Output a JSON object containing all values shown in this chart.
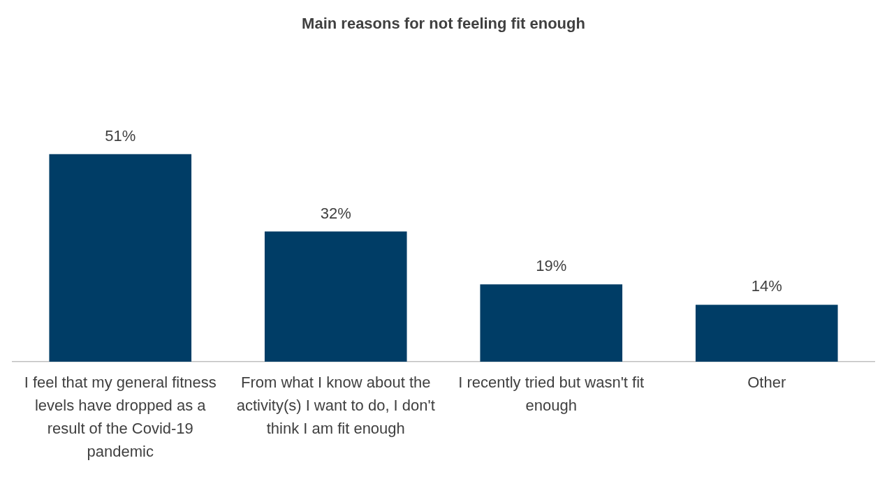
{
  "chart_data": {
    "type": "bar",
    "title": "Main reasons for not feeling fit enough",
    "categories": [
      "I feel that my general fitness levels have dropped as a result of the Covid-19 pandemic",
      "From what I know about the activity(s) I want to do, I don't think I am fit enough",
      "I recently tried but wasn't fit enough",
      "Other"
    ],
    "values": [
      51,
      32,
      19,
      14
    ],
    "color": "#003d66",
    "value_labels": [
      "51%",
      "32%",
      "19%",
      "14%"
    ],
    "legend": false
  }
}
